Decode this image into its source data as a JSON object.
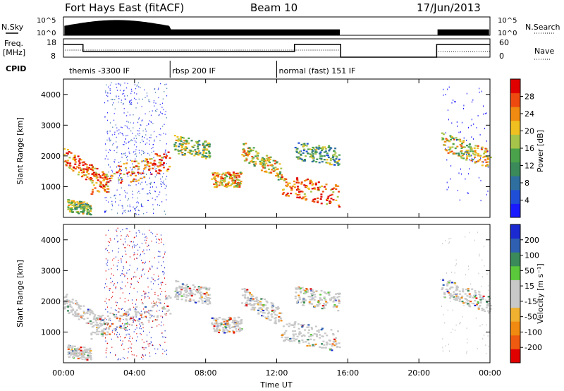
{
  "header": {
    "station": "Fort Hays East (fitACF)",
    "beam": "Beam 10",
    "date": "17/Jun/2013"
  },
  "noise_panel": {
    "left_label": "N.Sky",
    "left_ticks": [
      "10^5",
      "10^0"
    ],
    "right_label": "N.Search",
    "right_ticks": [
      "10^5",
      "10^0"
    ]
  },
  "freq_panel": {
    "left_label_line1": "Freq.",
    "left_label_line2": "[MHz]",
    "left_ticks": [
      "18",
      "8"
    ],
    "right_label": "Nave",
    "right_ticks": [
      "60",
      "0"
    ]
  },
  "cpid": {
    "label": "CPID",
    "modes": [
      {
        "name": "themis -3300 IF",
        "start": 0.2
      },
      {
        "name": "rbsp 200 IF",
        "start": 6.0
      },
      {
        "name": "normal (fast) 151 IF",
        "start": 12.0
      }
    ]
  },
  "colors": {
    "power": [
      "#1a1aff",
      "#1f4fd6",
      "#2e6fa0",
      "#3a8a5a",
      "#4aa34a",
      "#a6c44a",
      "#f0c020",
      "#f08a10",
      "#ee4a10",
      "#e00000"
    ],
    "velocity": [
      "#e00000",
      "#ee5a10",
      "#f08a10",
      "#f0b030",
      "#c8c8c8",
      "#c8c8c8",
      "#5ac83a",
      "#3a8a5a",
      "#2e5fb0",
      "#1a2ad0"
    ]
  },
  "chart_data": [
    {
      "type": "heatmap",
      "panel": "power",
      "ylabel": "Slant Range [km]",
      "yticks": [
        "1000",
        "2000",
        "3000",
        "4000"
      ],
      "ylim": [
        0,
        4500
      ],
      "xlim": [
        0,
        24
      ],
      "colorbar_label": "Power [dB]",
      "colorbar_ticks": [
        "4",
        "8",
        "12",
        "16",
        "20",
        "24",
        "28"
      ],
      "colorbar_range": [
        0,
        30
      ],
      "data_gap": [
        15.6,
        21.0
      ]
    },
    {
      "type": "heatmap",
      "panel": "velocity",
      "ylabel": "Slant Range [km]",
      "yticks": [
        "1000",
        "2000",
        "3000",
        "4000"
      ],
      "ylim": [
        0,
        4500
      ],
      "xlim": [
        0,
        24
      ],
      "colorbar_label": "Velocity [m s⁻¹]",
      "colorbar_ticks": [
        "-200",
        "-100",
        "-50",
        "-15",
        "15",
        "50",
        "100",
        "200"
      ],
      "data_gap": [
        15.6,
        21.0
      ]
    }
  ],
  "xaxis": {
    "label": "Time UT",
    "ticks": [
      "00:00",
      "04:00",
      "08:00",
      "12:00",
      "16:00",
      "20:00",
      "00:00"
    ]
  }
}
